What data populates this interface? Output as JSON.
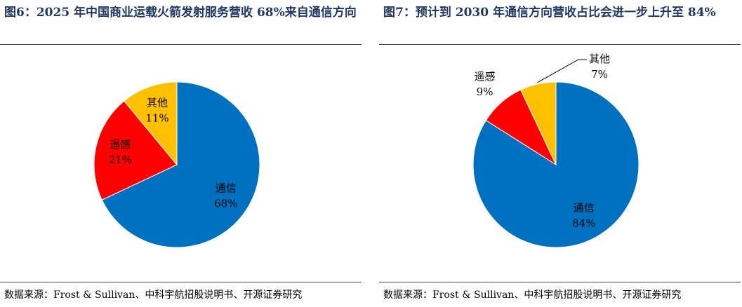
{
  "chart_data": [
    {
      "type": "pie",
      "title": "图6：2025 年中国商业运载火箭发射服务营收 68%来自通信方向",
      "categories": [
        "通信",
        "遥感",
        "其他"
      ],
      "values": [
        68,
        21,
        11
      ],
      "value_labels": [
        "68%",
        "21%",
        "11%"
      ],
      "colors": [
        "#0070c0",
        "#ff0000",
        "#ffc000"
      ],
      "source": "数据来源：Frost & Sullivan、中科宇航招股说明书、开源证券研究"
    },
    {
      "type": "pie",
      "title": "图7：预计到 2030 年通信方向营收占比会进一步上升至 84%",
      "categories": [
        "通信",
        "遥感",
        "其他"
      ],
      "values": [
        84,
        9,
        7
      ],
      "value_labels": [
        "84%",
        "9%",
        "7%"
      ],
      "colors": [
        "#0070c0",
        "#ff0000",
        "#ffc000"
      ],
      "source": "数据来源：Frost & Sullivan、中科宇航招股说明书、开源证券研究"
    }
  ]
}
